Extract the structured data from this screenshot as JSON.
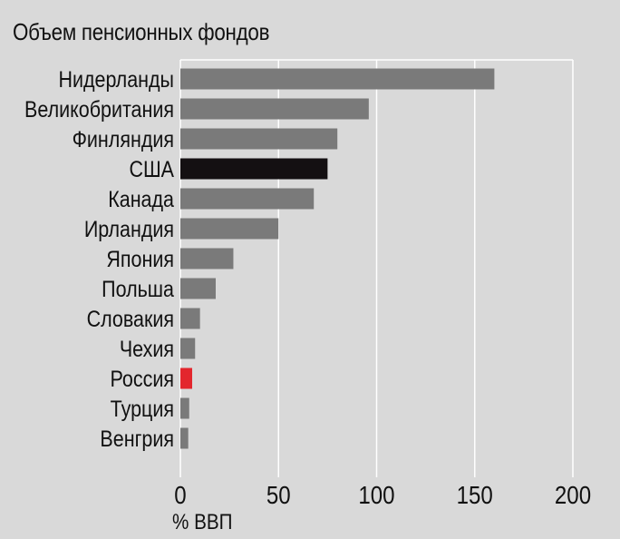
{
  "chart_data": {
    "type": "bar",
    "orientation": "horizontal",
    "title": "Объем пенсионных фондов",
    "xlabel": "% ВВП",
    "ylabel": "",
    "categories": [
      "Нидерланды",
      "Великобритания",
      "Финляндия",
      "США",
      "Канада",
      "Ирландия",
      "Япония",
      "Польша",
      "Словакия",
      "Чехия",
      "Россия",
      "Турция",
      "Венгрия"
    ],
    "values": [
      160,
      96,
      80,
      75,
      68,
      50,
      27,
      18,
      10,
      7.5,
      6,
      4.5,
      4
    ],
    "bar_colors": [
      "#7a7a7a",
      "#7a7a7a",
      "#7a7a7a",
      "#141012",
      "#7a7a7a",
      "#7a7a7a",
      "#7a7a7a",
      "#7a7a7a",
      "#7a7a7a",
      "#7a7a7a",
      "#e3262d",
      "#7a7a7a",
      "#7a7a7a"
    ],
    "xlim": [
      0,
      200
    ],
    "xticks": [
      0,
      50,
      100,
      150,
      200
    ],
    "grid": "vertical",
    "legend": "none"
  },
  "colors": {
    "background": "#d9d9d9",
    "bar_default": "#7a7a7a",
    "highlight_usa": "#141012",
    "highlight_russia": "#e3262d",
    "grid": "#ffffff"
  }
}
